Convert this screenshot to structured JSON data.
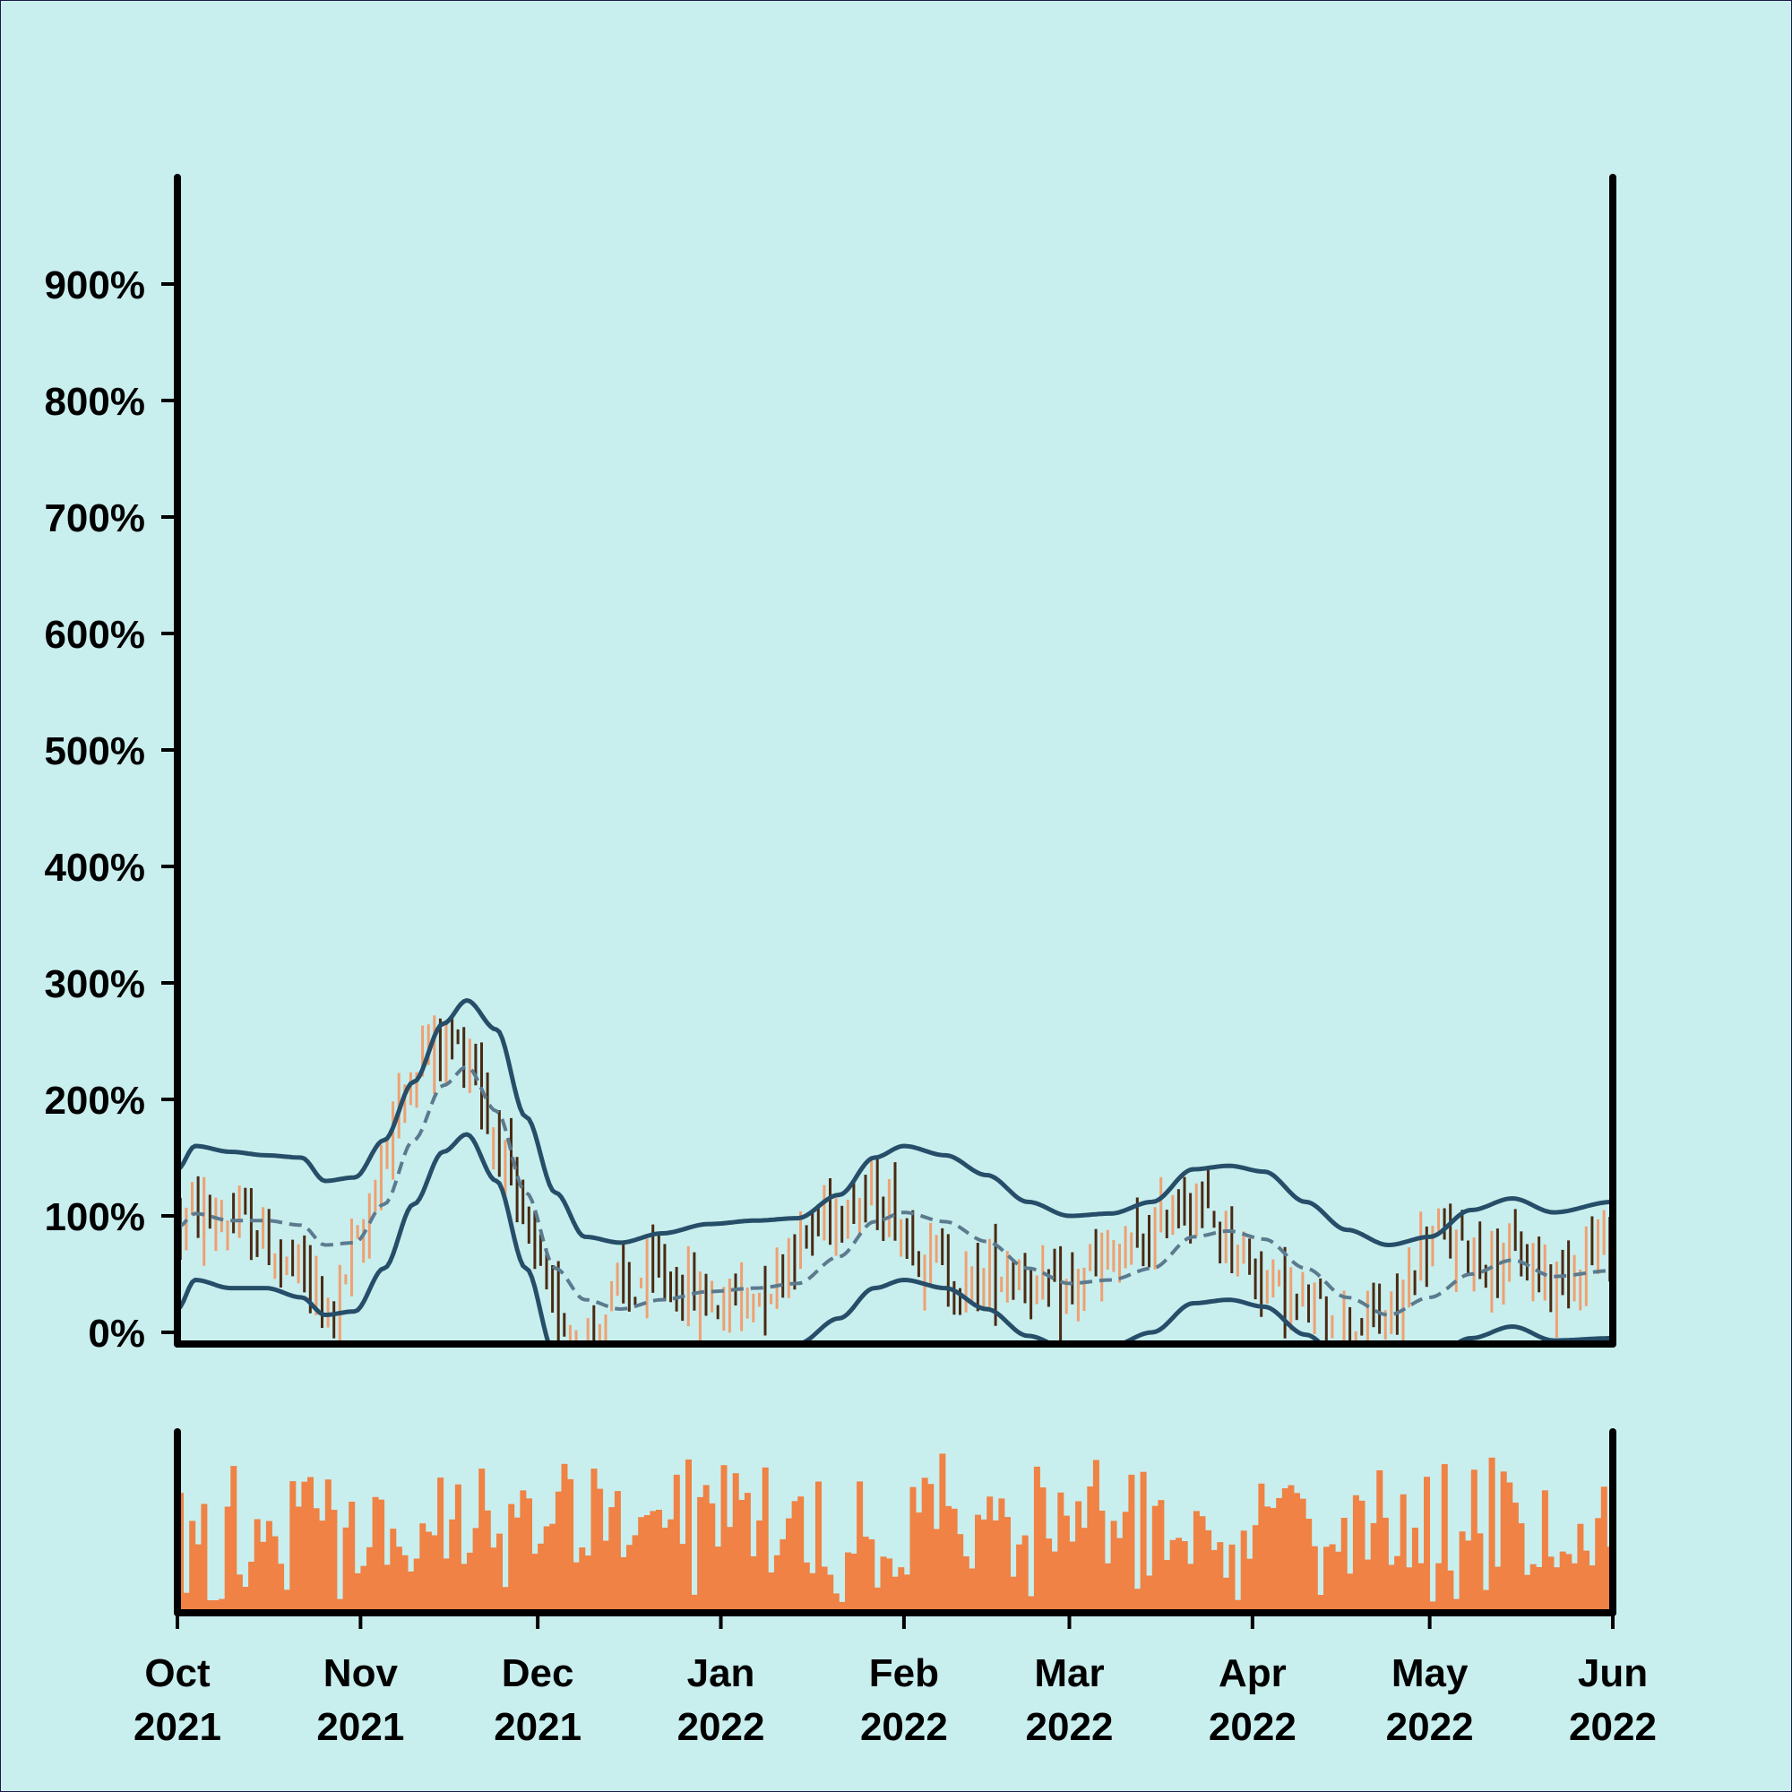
{
  "chart_data": [
    {
      "type": "ohlc",
      "title": "",
      "xlabel": "",
      "ylabel": "",
      "y_unit": "%",
      "ylim": [
        0,
        1000
      ],
      "xlim": [
        "2021-10-01",
        "2022-06-01"
      ],
      "y_ticks": [
        {
          "value": 0,
          "label": "0%"
        },
        {
          "value": 100,
          "label": "100%"
        },
        {
          "value": 200,
          "label": "200%"
        },
        {
          "value": 300,
          "label": "300%"
        },
        {
          "value": 400,
          "label": "400%"
        },
        {
          "value": 500,
          "label": "500%"
        },
        {
          "value": 600,
          "label": "600%"
        },
        {
          "value": 700,
          "label": "700%"
        },
        {
          "value": 800,
          "label": "800%"
        },
        {
          "value": 900,
          "label": "900%"
        }
      ],
      "x_ticks": [
        {
          "date": "2021-10-01",
          "month": "Oct",
          "year": "2021"
        },
        {
          "date": "2021-11-01",
          "month": "Nov",
          "year": "2021"
        },
        {
          "date": "2021-12-01",
          "month": "Dec",
          "year": "2021"
        },
        {
          "date": "2022-01-01",
          "month": "Jan",
          "year": "2022"
        },
        {
          "date": "2022-02-01",
          "month": "Feb",
          "year": "2022"
        },
        {
          "date": "2022-03-01",
          "month": "Mar",
          "year": "2022"
        },
        {
          "date": "2022-04-01",
          "month": "Apr",
          "year": "2022"
        },
        {
          "date": "2022-05-01",
          "month": "May",
          "year": "2022"
        },
        {
          "date": "2022-06-01",
          "month": "Jun",
          "year": "2022"
        }
      ],
      "close_anchors": [
        {
          "date": "2021-10-01",
          "value": 95
        },
        {
          "date": "2021-10-05",
          "value": 100
        },
        {
          "date": "2021-10-12",
          "value": 90
        },
        {
          "date": "2021-10-20",
          "value": 55
        },
        {
          "date": "2021-10-26",
          "value": 20
        },
        {
          "date": "2021-10-31",
          "value": 70
        },
        {
          "date": "2021-11-05",
          "value": 165
        },
        {
          "date": "2021-11-10",
          "value": 235
        },
        {
          "date": "2021-11-14",
          "value": 250
        },
        {
          "date": "2021-11-19",
          "value": 240
        },
        {
          "date": "2021-11-23",
          "value": 170
        },
        {
          "date": "2021-11-28",
          "value": 90
        },
        {
          "date": "2021-12-03",
          "value": 20
        },
        {
          "date": "2021-12-08",
          "value": -10
        },
        {
          "date": "2021-12-15",
          "value": 35
        },
        {
          "date": "2021-12-22",
          "value": 45
        },
        {
          "date": "2021-12-30",
          "value": 25
        },
        {
          "date": "2022-01-07",
          "value": 35
        },
        {
          "date": "2022-01-14",
          "value": 80
        },
        {
          "date": "2022-01-21",
          "value": 115
        },
        {
          "date": "2022-01-28",
          "value": 110
        },
        {
          "date": "2022-02-03",
          "value": 75
        },
        {
          "date": "2022-02-10",
          "value": 40
        },
        {
          "date": "2022-02-20",
          "value": 55
        },
        {
          "date": "2022-02-26",
          "value": 25
        },
        {
          "date": "2022-03-05",
          "value": 55
        },
        {
          "date": "2022-03-12",
          "value": 70
        },
        {
          "date": "2022-03-20",
          "value": 115
        },
        {
          "date": "2022-03-26",
          "value": 90
        },
        {
          "date": "2022-04-02",
          "value": 50
        },
        {
          "date": "2022-04-09",
          "value": 20
        },
        {
          "date": "2022-04-16",
          "value": 5
        },
        {
          "date": "2022-04-23",
          "value": 10
        },
        {
          "date": "2022-05-01",
          "value": 80
        },
        {
          "date": "2022-05-08",
          "value": 70
        },
        {
          "date": "2022-05-15",
          "value": 60
        },
        {
          "date": "2022-05-22",
          "value": 45
        },
        {
          "date": "2022-05-28",
          "value": 75
        },
        {
          "date": "2022-06-01",
          "value": 70
        }
      ],
      "candle_colors": {
        "up": "#f0a070",
        "down": "#4a2a12"
      },
      "moving_average": {
        "center_color": "#5c7a8e",
        "center_style": "dashed",
        "band_color": "#264e69",
        "center": [
          {
            "date": "2021-10-01",
            "value": 90
          },
          {
            "date": "2021-10-04",
            "value": 102
          },
          {
            "date": "2021-10-10",
            "value": 96
          },
          {
            "date": "2021-10-16",
            "value": 96
          },
          {
            "date": "2021-10-22",
            "value": 92
          },
          {
            "date": "2021-10-26",
            "value": 75
          },
          {
            "date": "2021-10-31",
            "value": 77
          },
          {
            "date": "2021-11-05",
            "value": 110
          },
          {
            "date": "2021-11-10",
            "value": 165
          },
          {
            "date": "2021-11-15",
            "value": 212
          },
          {
            "date": "2021-11-19",
            "value": 228
          },
          {
            "date": "2021-11-24",
            "value": 190
          },
          {
            "date": "2021-11-29",
            "value": 120
          },
          {
            "date": "2021-12-04",
            "value": 55
          },
          {
            "date": "2021-12-09",
            "value": 28
          },
          {
            "date": "2021-12-15",
            "value": 20
          },
          {
            "date": "2021-12-22",
            "value": 28
          },
          {
            "date": "2021-12-30",
            "value": 35
          },
          {
            "date": "2022-01-07",
            "value": 38
          },
          {
            "date": "2022-01-14",
            "value": 42
          },
          {
            "date": "2022-01-21",
            "value": 65
          },
          {
            "date": "2022-01-27",
            "value": 95
          },
          {
            "date": "2022-02-01",
            "value": 103
          },
          {
            "date": "2022-02-08",
            "value": 95
          },
          {
            "date": "2022-02-15",
            "value": 78
          },
          {
            "date": "2022-02-22",
            "value": 55
          },
          {
            "date": "2022-03-01",
            "value": 42
          },
          {
            "date": "2022-03-08",
            "value": 45
          },
          {
            "date": "2022-03-15",
            "value": 55
          },
          {
            "date": "2022-03-22",
            "value": 82
          },
          {
            "date": "2022-03-28",
            "value": 87
          },
          {
            "date": "2022-04-03",
            "value": 80
          },
          {
            "date": "2022-04-10",
            "value": 55
          },
          {
            "date": "2022-04-17",
            "value": 30
          },
          {
            "date": "2022-04-24",
            "value": 15
          },
          {
            "date": "2022-05-01",
            "value": 30
          },
          {
            "date": "2022-05-08",
            "value": 50
          },
          {
            "date": "2022-05-15",
            "value": 62
          },
          {
            "date": "2022-05-22",
            "value": 48
          },
          {
            "date": "2022-06-01",
            "value": 53
          }
        ],
        "upper": [
          {
            "date": "2021-10-01",
            "value": 140
          },
          {
            "date": "2021-10-04",
            "value": 160
          },
          {
            "date": "2021-10-10",
            "value": 155
          },
          {
            "date": "2021-10-16",
            "value": 152
          },
          {
            "date": "2021-10-22",
            "value": 150
          },
          {
            "date": "2021-10-26",
            "value": 130
          },
          {
            "date": "2021-10-31",
            "value": 133
          },
          {
            "date": "2021-11-05",
            "value": 165
          },
          {
            "date": "2021-11-10",
            "value": 215
          },
          {
            "date": "2021-11-15",
            "value": 265
          },
          {
            "date": "2021-11-19",
            "value": 285
          },
          {
            "date": "2021-11-24",
            "value": 260
          },
          {
            "date": "2021-11-29",
            "value": 185
          },
          {
            "date": "2021-12-04",
            "value": 120
          },
          {
            "date": "2021-12-09",
            "value": 82
          },
          {
            "date": "2021-12-15",
            "value": 77
          },
          {
            "date": "2021-12-22",
            "value": 85
          },
          {
            "date": "2021-12-30",
            "value": 93
          },
          {
            "date": "2022-01-07",
            "value": 96
          },
          {
            "date": "2022-01-14",
            "value": 98
          },
          {
            "date": "2022-01-21",
            "value": 118
          },
          {
            "date": "2022-01-27",
            "value": 150
          },
          {
            "date": "2022-02-01",
            "value": 160
          },
          {
            "date": "2022-02-08",
            "value": 152
          },
          {
            "date": "2022-02-15",
            "value": 135
          },
          {
            "date": "2022-02-22",
            "value": 112
          },
          {
            "date": "2022-03-01",
            "value": 100
          },
          {
            "date": "2022-03-08",
            "value": 102
          },
          {
            "date": "2022-03-15",
            "value": 112
          },
          {
            "date": "2022-03-22",
            "value": 140
          },
          {
            "date": "2022-03-28",
            "value": 143
          },
          {
            "date": "2022-04-03",
            "value": 138
          },
          {
            "date": "2022-04-10",
            "value": 112
          },
          {
            "date": "2022-04-17",
            "value": 88
          },
          {
            "date": "2022-04-24",
            "value": 75
          },
          {
            "date": "2022-05-01",
            "value": 82
          },
          {
            "date": "2022-05-08",
            "value": 105
          },
          {
            "date": "2022-05-15",
            "value": 115
          },
          {
            "date": "2022-05-22",
            "value": 103
          },
          {
            "date": "2022-06-01",
            "value": 112
          }
        ],
        "lower": [
          {
            "date": "2021-10-01",
            "value": 20
          },
          {
            "date": "2021-10-04",
            "value": 45
          },
          {
            "date": "2021-10-10",
            "value": 38
          },
          {
            "date": "2021-10-16",
            "value": 38
          },
          {
            "date": "2021-10-22",
            "value": 30
          },
          {
            "date": "2021-10-26",
            "value": 15
          },
          {
            "date": "2021-10-31",
            "value": 18
          },
          {
            "date": "2021-11-05",
            "value": 55
          },
          {
            "date": "2021-11-10",
            "value": 110
          },
          {
            "date": "2021-11-15",
            "value": 155
          },
          {
            "date": "2021-11-19",
            "value": 170
          },
          {
            "date": "2021-11-24",
            "value": 130
          },
          {
            "date": "2021-11-29",
            "value": 55
          },
          {
            "date": "2021-12-04",
            "value": -20
          },
          {
            "date": "2021-12-09",
            "value": -40
          },
          {
            "date": "2021-12-15",
            "value": -40
          },
          {
            "date": "2021-12-22",
            "value": -30
          },
          {
            "date": "2021-12-30",
            "value": -25
          },
          {
            "date": "2022-01-07",
            "value": -20
          },
          {
            "date": "2022-01-14",
            "value": -10
          },
          {
            "date": "2022-01-21",
            "value": 12
          },
          {
            "date": "2022-01-27",
            "value": 38
          },
          {
            "date": "2022-02-01",
            "value": 45
          },
          {
            "date": "2022-02-08",
            "value": 38
          },
          {
            "date": "2022-02-15",
            "value": 20
          },
          {
            "date": "2022-02-22",
            "value": -3
          },
          {
            "date": "2022-03-01",
            "value": -15
          },
          {
            "date": "2022-03-08",
            "value": -12
          },
          {
            "date": "2022-03-15",
            "value": 0
          },
          {
            "date": "2022-03-22",
            "value": 25
          },
          {
            "date": "2022-03-28",
            "value": 28
          },
          {
            "date": "2022-04-03",
            "value": 22
          },
          {
            "date": "2022-04-10",
            "value": -2
          },
          {
            "date": "2022-04-17",
            "value": -28
          },
          {
            "date": "2022-04-24",
            "value": -45
          },
          {
            "date": "2022-05-01",
            "value": -22
          },
          {
            "date": "2022-05-08",
            "value": -5
          },
          {
            "date": "2022-05-15",
            "value": 5
          },
          {
            "date": "2022-05-22",
            "value": -7
          },
          {
            "date": "2022-06-01",
            "value": -5
          }
        ]
      },
      "grid": false
    },
    {
      "type": "bar",
      "title": "",
      "xlabel": "",
      "ylabel": "",
      "bar_color": "#ef8244",
      "xlim": [
        "2021-10-01",
        "2022-06-01"
      ],
      "y_ticks": [],
      "volume_relative_range": [
        0.05,
        1.0
      ]
    }
  ],
  "colors": {
    "background": "#c9eeee",
    "axis": "#000000",
    "border": "#1a1a4a"
  }
}
